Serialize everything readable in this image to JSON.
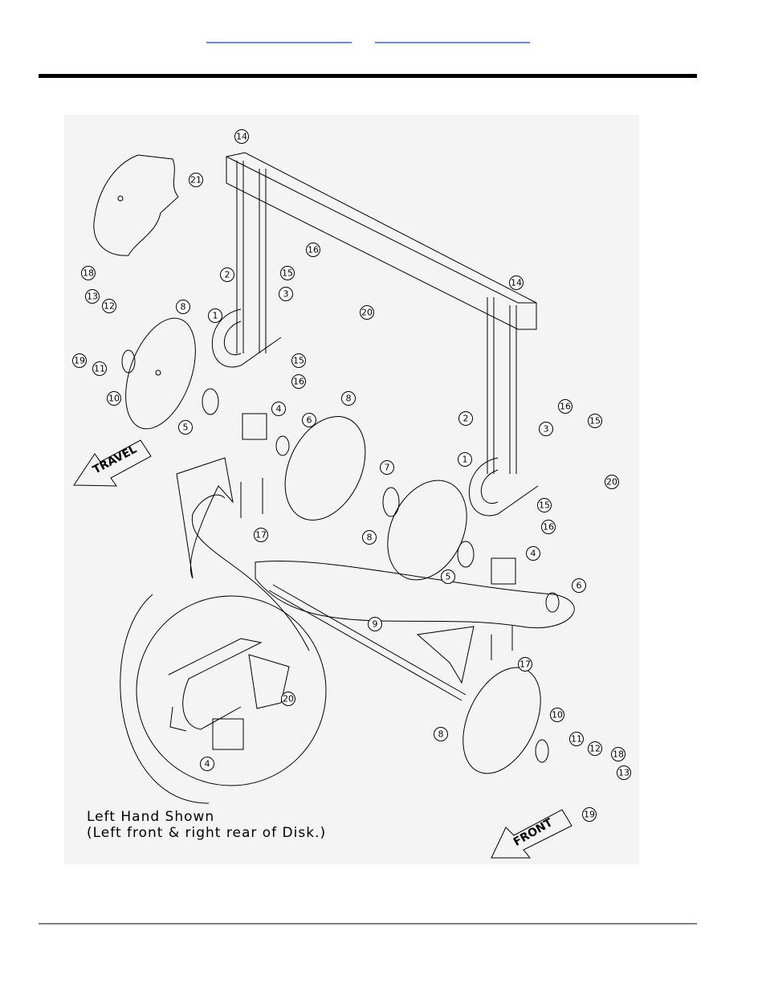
{
  "diagram": {
    "callouts": [
      "14",
      "21",
      "18",
      "16",
      "13",
      "12",
      "2",
      "15",
      "8",
      "3",
      "1",
      "20",
      "14",
      "11",
      "19",
      "15",
      "16",
      "10",
      "8",
      "4",
      "5",
      "6",
      "16",
      "15",
      "2",
      "3",
      "1",
      "20",
      "7",
      "15",
      "16",
      "17",
      "8",
      "4",
      "5",
      "6",
      "9",
      "17",
      "20",
      "10",
      "11",
      "12",
      "18",
      "8",
      "13",
      "4",
      "19"
    ],
    "direction_arrows": [
      "TRAVEL",
      "FRONT"
    ],
    "note": [
      "Left Hand Shown",
      "(Left front & right rear of Disk.)"
    ]
  }
}
